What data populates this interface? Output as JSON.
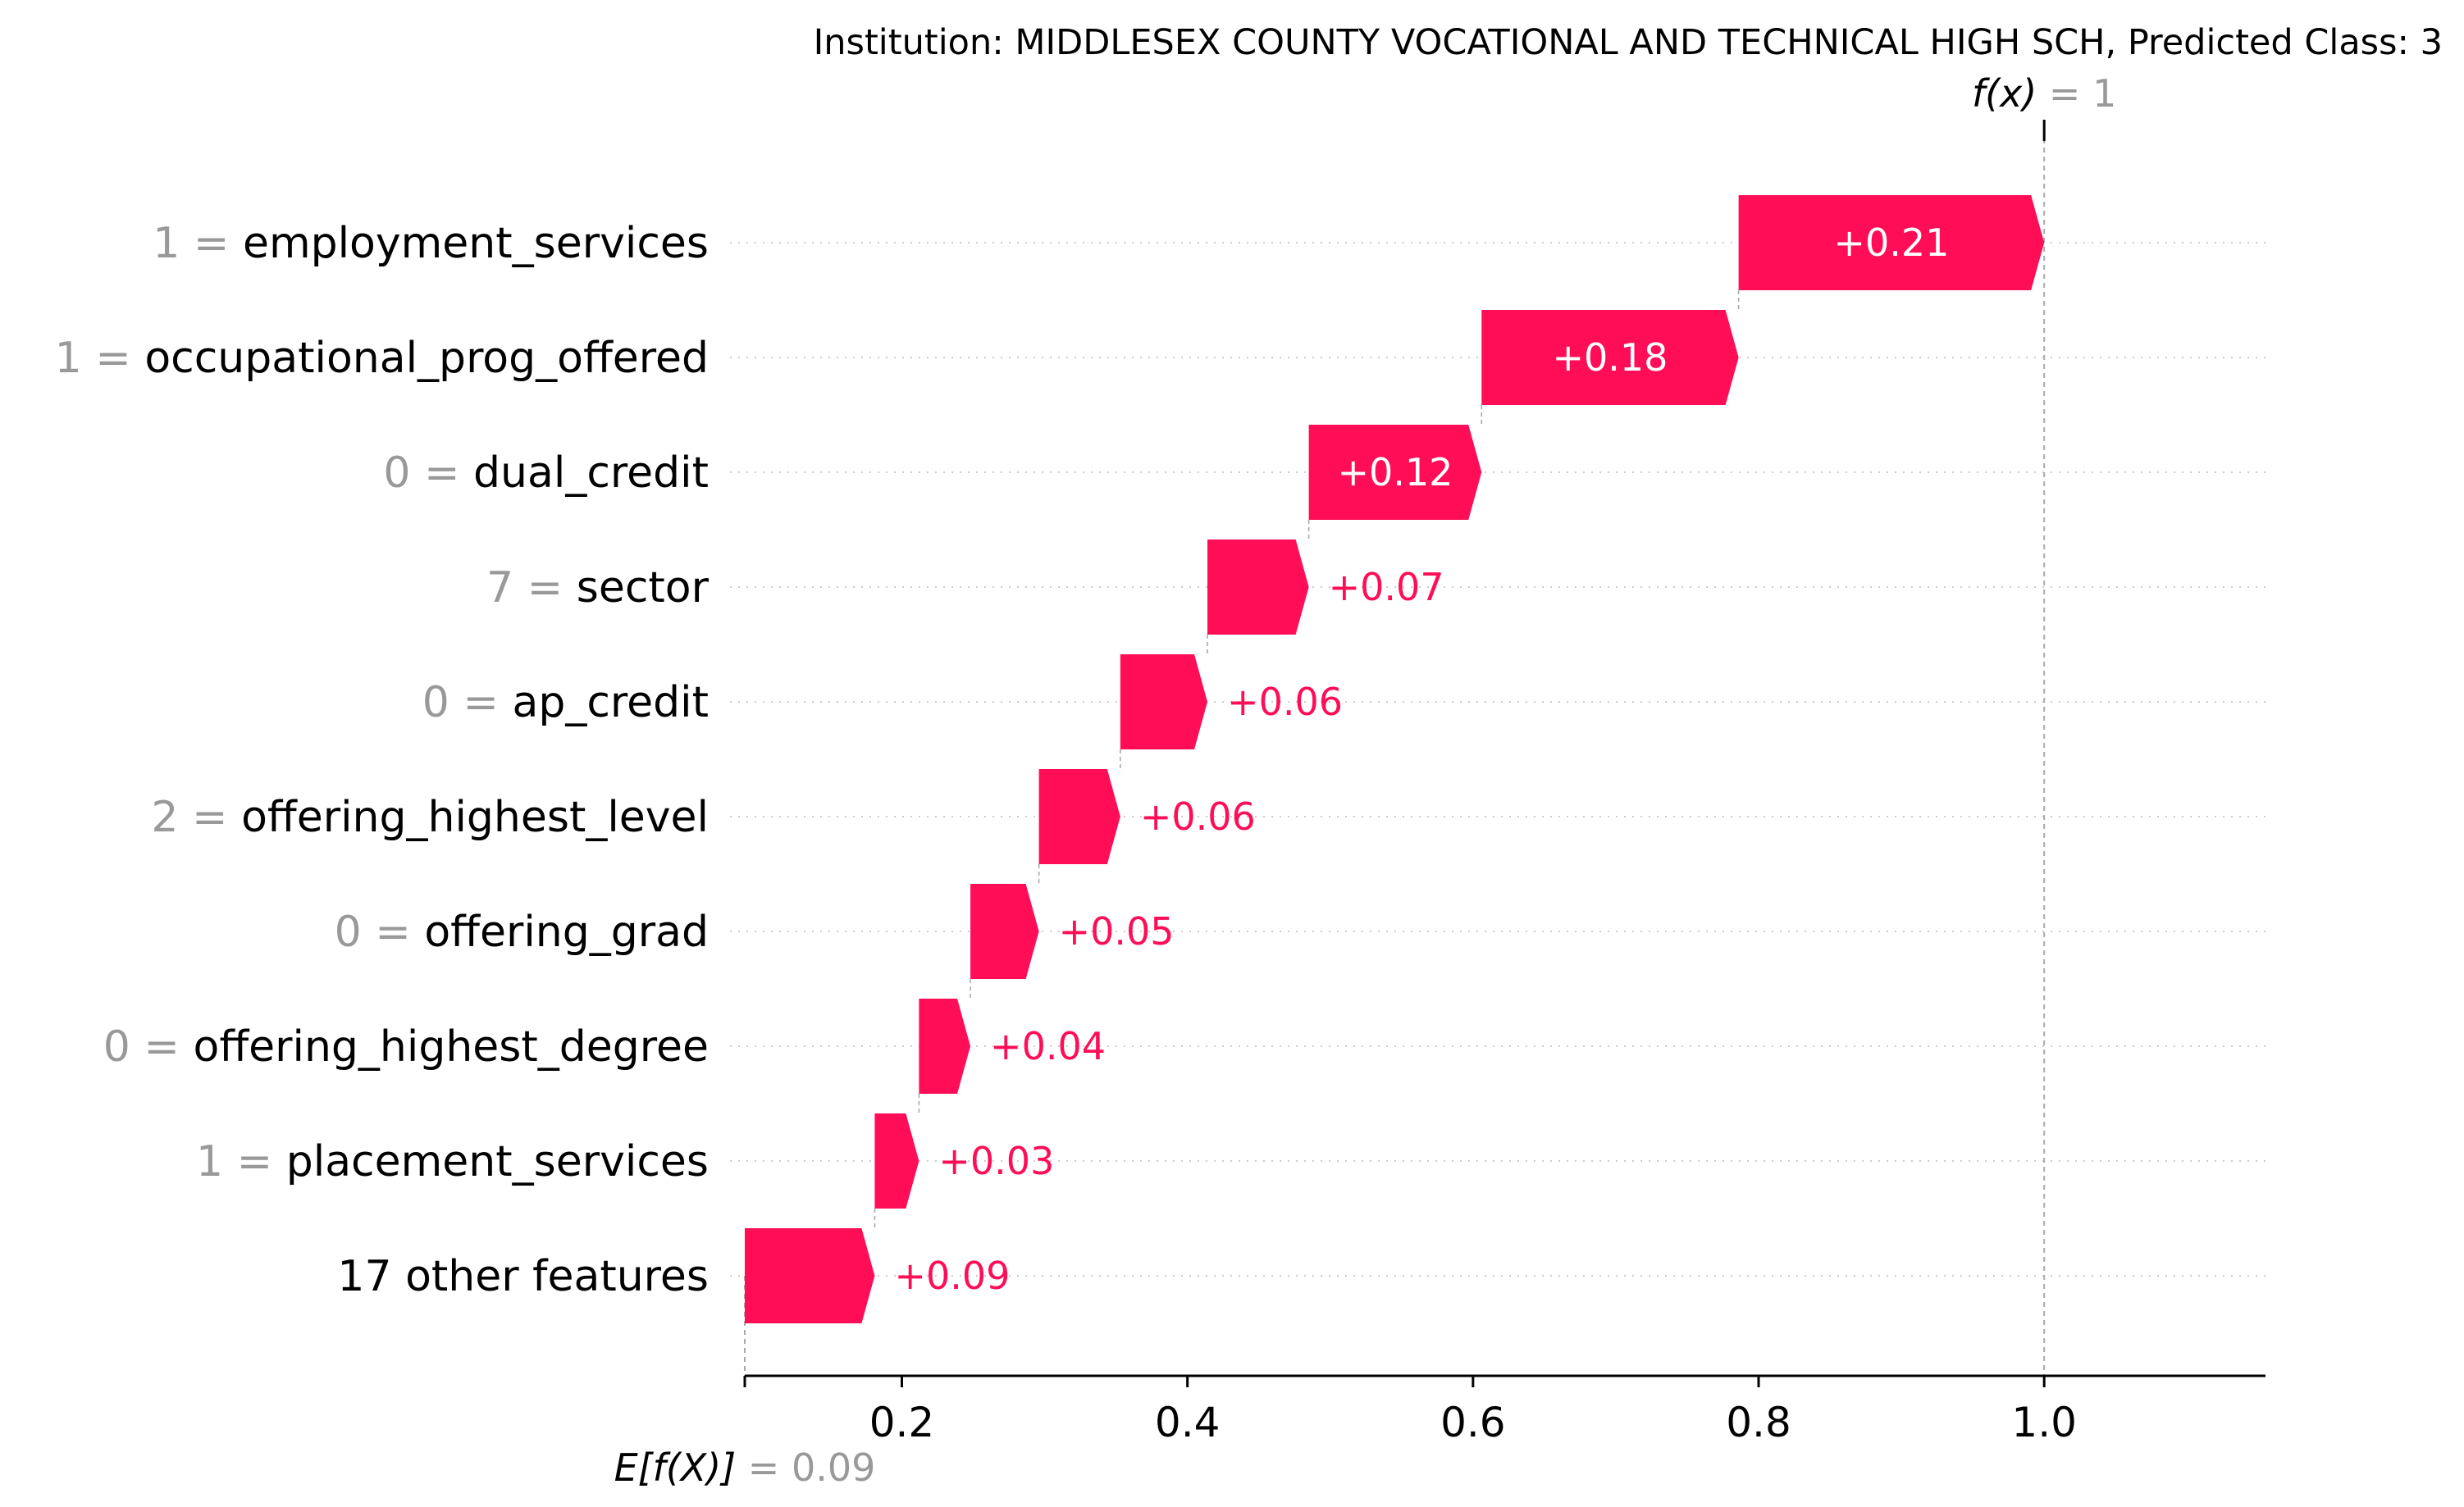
{
  "chart_data": {
    "type": "waterfall",
    "title": "Institution: MIDDLESEX COUNTY VOCATIONAL AND TECHNICAL HIGH SCH, Predicted Class: 3",
    "base_value": 0.09,
    "base_value_label": "0.09",
    "base_label_prefix": "E[f(X)]",
    "output_value": 1,
    "output_value_label": "1",
    "output_label_prefix": "f(x)",
    "xlim": [
      0.09,
      1.155
    ],
    "xticks": [
      0.2,
      0.4,
      0.6,
      0.8,
      1.0
    ],
    "xtick_labels": [
      "0.2",
      "0.4",
      "0.6",
      "0.8",
      "1.0"
    ],
    "positive_color": "#ff0d57",
    "grid_color": "#cccccc",
    "features": [
      {
        "value": "1",
        "name": "employment_services",
        "start": 0.786,
        "end": 1.0,
        "label": "+0.21"
      },
      {
        "value": "1",
        "name": "occupational_prog_offered",
        "start": 0.606,
        "end": 0.786,
        "label": "+0.18"
      },
      {
        "value": "0",
        "name": "dual_credit",
        "start": 0.485,
        "end": 0.606,
        "label": "+0.12"
      },
      {
        "value": "7",
        "name": "sector",
        "start": 0.414,
        "end": 0.485,
        "label": "+0.07"
      },
      {
        "value": "0",
        "name": "ap_credit",
        "start": 0.353,
        "end": 0.414,
        "label": "+0.06"
      },
      {
        "value": "2",
        "name": "offering_highest_level",
        "start": 0.296,
        "end": 0.353,
        "label": "+0.06"
      },
      {
        "value": "0",
        "name": "offering_grad",
        "start": 0.248,
        "end": 0.296,
        "label": "+0.05"
      },
      {
        "value": "0",
        "name": "offering_highest_degree",
        "start": 0.212,
        "end": 0.248,
        "label": "+0.04"
      },
      {
        "value": "1",
        "name": "placement_services",
        "start": 0.181,
        "end": 0.212,
        "label": "+0.03"
      },
      {
        "value": "",
        "name": "17 other features",
        "start": 0.09,
        "end": 0.181,
        "label": "+0.09"
      }
    ]
  }
}
